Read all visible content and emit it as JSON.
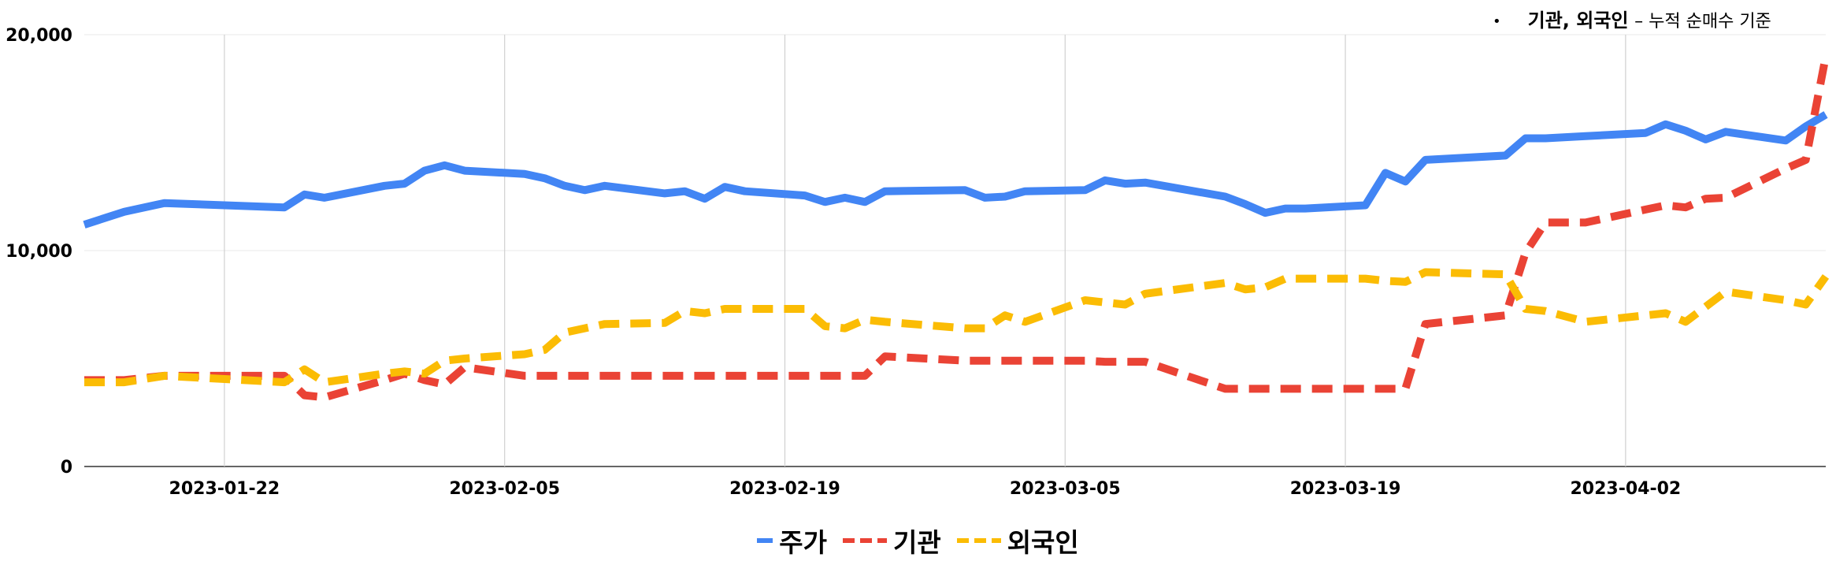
{
  "annotation": {
    "bullet": "•",
    "strong": "기관, 외국인",
    "rest": "– 누적 순매수 기준"
  },
  "chart_data": {
    "type": "line",
    "x": [
      "2023-01-15",
      "2023-01-17",
      "2023-01-19",
      "2023-01-25",
      "2023-01-26",
      "2023-01-27",
      "2023-01-30",
      "2023-01-31",
      "2023-02-01",
      "2023-02-02",
      "2023-02-03",
      "2023-02-06",
      "2023-02-07",
      "2023-02-08",
      "2023-02-09",
      "2023-02-10",
      "2023-02-13",
      "2023-02-14",
      "2023-02-15",
      "2023-02-16",
      "2023-02-17",
      "2023-02-20",
      "2023-02-21",
      "2023-02-22",
      "2023-02-23",
      "2023-02-24",
      "2023-02-28",
      "2023-03-01",
      "2023-03-02",
      "2023-03-03",
      "2023-03-06",
      "2023-03-07",
      "2023-03-08",
      "2023-03-09",
      "2023-03-13",
      "2023-03-14",
      "2023-03-15",
      "2023-03-16",
      "2023-03-17",
      "2023-03-20",
      "2023-03-21",
      "2023-03-22",
      "2023-03-23",
      "2023-03-27",
      "2023-03-28",
      "2023-03-29",
      "2023-03-31",
      "2023-04-03",
      "2023-04-04",
      "2023-04-05",
      "2023-04-06",
      "2023-04-07",
      "2023-04-10",
      "2023-04-11",
      "2023-04-12"
    ],
    "xticks": [
      "2023-01-22",
      "2023-02-05",
      "2023-02-19",
      "2023-03-05",
      "2023-03-19",
      "2023-04-02"
    ],
    "ylim": [
      0,
      20000
    ],
    "yticks": [
      0,
      10000,
      20000
    ],
    "ytick_labels": [
      "0",
      "10,000",
      "20,000"
    ],
    "grid": true,
    "legend_position": "bottom",
    "series": [
      {
        "name": "주가",
        "color": "#4285F4",
        "style": "solid",
        "values": [
          11200,
          11800,
          12200,
          12000,
          12600,
          12450,
          13000,
          13100,
          13700,
          13950,
          13700,
          13550,
          13350,
          13000,
          12800,
          13000,
          12650,
          12750,
          12400,
          12950,
          12750,
          12550,
          12250,
          12450,
          12250,
          12750,
          12800,
          12450,
          12500,
          12750,
          12800,
          13250,
          13100,
          13150,
          12500,
          12150,
          11750,
          11950,
          11950,
          12100,
          13600,
          13200,
          14200,
          14400,
          15200,
          15200,
          15300,
          15450,
          15850,
          15550,
          15150,
          15500,
          15100,
          15750,
          16300
        ]
      },
      {
        "name": "기관",
        "color": "#EA4335",
        "style": "dashed",
        "values": [
          4000,
          4000,
          4200,
          4200,
          3300,
          3200,
          4000,
          4300,
          4000,
          3800,
          4600,
          4200,
          4200,
          4200,
          4200,
          4200,
          4200,
          4200,
          4200,
          4200,
          4200,
          4200,
          4200,
          4200,
          4200,
          5100,
          4900,
          4900,
          4900,
          4900,
          4900,
          4850,
          4850,
          4850,
          3600,
          3600,
          3600,
          3600,
          3600,
          3600,
          3600,
          3600,
          6600,
          7000,
          9900,
          11300,
          11300,
          11900,
          12100,
          12000,
          12400,
          12450,
          13800,
          14200,
          19000
        ]
      },
      {
        "name": "외국인",
        "color": "#FBBC04",
        "style": "dashed",
        "values": [
          3900,
          3900,
          4200,
          3900,
          4500,
          3900,
          4300,
          4400,
          4300,
          4900,
          5000,
          5200,
          5400,
          6200,
          6400,
          6600,
          6650,
          7200,
          7100,
          7300,
          7300,
          7300,
          6500,
          6400,
          6800,
          6700,
          6400,
          6400,
          7000,
          6700,
          7700,
          7600,
          7500,
          8000,
          8500,
          8200,
          8300,
          8700,
          8700,
          8700,
          8600,
          8550,
          9000,
          8900,
          7300,
          7200,
          6700,
          7000,
          7100,
          6700,
          7400,
          8100,
          7700,
          7500,
          8800
        ]
      }
    ]
  }
}
